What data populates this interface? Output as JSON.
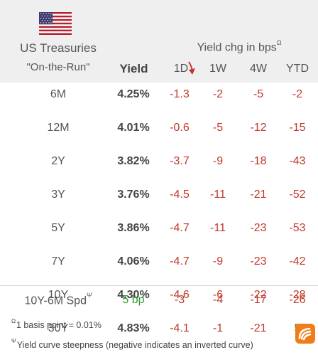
{
  "header": {
    "title_line1": "US Treasuries",
    "title_line2": "\"On-the-Run\"",
    "chg_title": "Yield chg in bps",
    "chg_title_sup": "Ω",
    "col_yield": "Yield",
    "col_1d": "1D",
    "col_1w": "1W",
    "col_4w": "4W",
    "col_ytd": "YTD"
  },
  "rows": [
    {
      "term": "6M",
      "yield": "4.25%",
      "d1": "-1.3",
      "w1": "-2",
      "w4": "-5",
      "ytd": "-2"
    },
    {
      "term": "12M",
      "yield": "4.01%",
      "d1": "-0.6",
      "w1": "-5",
      "w4": "-12",
      "ytd": "-15"
    },
    {
      "term": "2Y",
      "yield": "3.82%",
      "d1": "-3.7",
      "w1": "-9",
      "w4": "-18",
      "ytd": "-43"
    },
    {
      "term": "3Y",
      "yield": "3.76%",
      "d1": "-4.5",
      "w1": "-11",
      "w4": "-21",
      "ytd": "-52"
    },
    {
      "term": "5Y",
      "yield": "3.86%",
      "d1": "-4.7",
      "w1": "-11",
      "w4": "-23",
      "ytd": "-53"
    },
    {
      "term": "7Y",
      "yield": "4.06%",
      "d1": "-4.7",
      "w1": "-9",
      "w4": "-23",
      "ytd": "-42"
    },
    {
      "term": "10Y",
      "yield": "4.30%",
      "d1": "-4.6",
      "w1": "-6",
      "w4": "-22",
      "ytd": "-28"
    },
    {
      "term": "30Y",
      "yield": "4.83%",
      "d1": "-4.1",
      "w1": "-1",
      "w4": "-21",
      "ytd": "5"
    }
  ],
  "spread": {
    "label": "10Y-6M Spd",
    "label_sup": "Ψ",
    "value": "5 bp",
    "d1": "-3",
    "w1": "-4",
    "w4": "-17",
    "ytd": "-26"
  },
  "notes": {
    "note1_sup": "Ω",
    "note1": "1 basis point = 0.01%",
    "note2_sup": "Ψ",
    "note2": "Yield curve steepness (negative indicates an inverted curve)"
  },
  "colors": {
    "negative": "#c0392b",
    "positive": "#2e9a2e",
    "header_bg": "#efefef",
    "sort_arrow": "#c0392b",
    "logo": "#f07d1a"
  },
  "icons": {
    "flag": "us-flag-icon",
    "sort": "sort-descending-arrow-icon",
    "logo": "brand-logo-icon"
  }
}
